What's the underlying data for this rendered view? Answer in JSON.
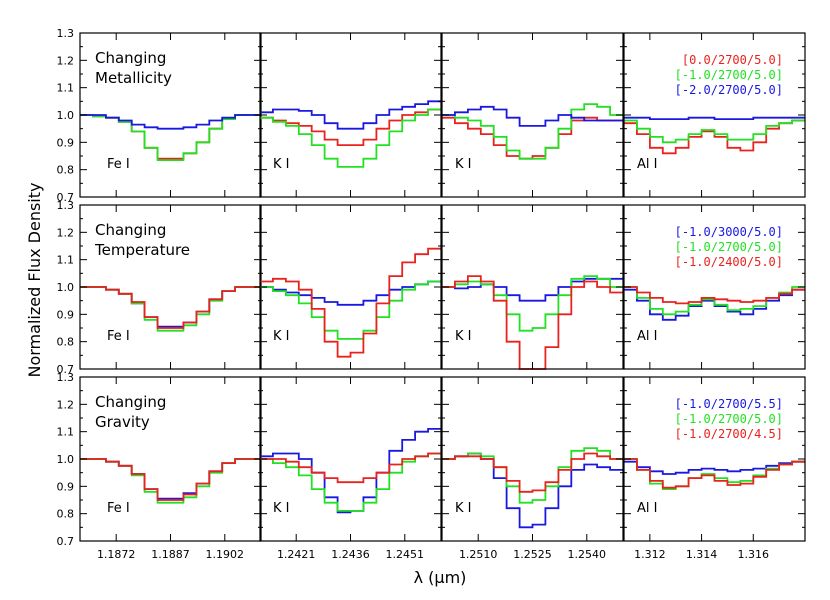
{
  "chart_data": {
    "type": "line",
    "ylabel": "Normalized Flux Density",
    "xlabel": "λ (μm)",
    "ylim": [
      0.7,
      1.3
    ],
    "yticks": [
      "0.7",
      "0.8",
      "0.9",
      "1.0",
      "1.1",
      "1.2",
      "1.3"
    ],
    "grid": false,
    "step": true,
    "columns": [
      {
        "line": "Fe I",
        "xlim": [
          1.1862,
          1.1912
        ],
        "ticks": [
          "1.1872",
          "1.1887",
          "1.1902"
        ],
        "tick_values": [
          1.1872,
          1.1887,
          1.1902
        ]
      },
      {
        "line": "K I",
        "xlim": [
          1.2411,
          1.2461
        ],
        "ticks": [
          "1.2421",
          "1.2436",
          "1.2451"
        ],
        "tick_values": [
          1.2421,
          1.2436,
          1.2451
        ]
      },
      {
        "line": "K I",
        "xlim": [
          1.25,
          1.255
        ],
        "ticks": [
          "1.2510",
          "1.2525",
          "1.2540"
        ],
        "tick_values": [
          1.251,
          1.2525,
          1.254
        ]
      },
      {
        "line": "Al I",
        "xlim": [
          1.311,
          1.318
        ],
        "ticks": [
          "1.312",
          "1.314",
          "1.316"
        ],
        "tick_values": [
          1.312,
          1.314,
          1.316
        ]
      }
    ],
    "rows": [
      {
        "title": [
          "Changing",
          "Metallicity"
        ],
        "legend": [
          {
            "label": "[0.0/2700/5.0]",
            "color": "#e8221e"
          },
          {
            "label": "[-1.0/2700/5.0]",
            "color": "#22e022"
          },
          {
            "label": "[-2.0/2700/5.0]",
            "color": "#1818e0"
          }
        ],
        "series": [
          [
            [
              1.0,
              0.995,
              0.99,
              0.975,
              0.94,
              0.88,
              0.84,
              0.84,
              0.86,
              0.9,
              0.95,
              0.985,
              1.0,
              1.0
            ],
            [
              1.0,
              0.995,
              0.99,
              0.975,
              0.94,
              0.88,
              0.835,
              0.835,
              0.86,
              0.9,
              0.95,
              0.985,
              1.0,
              1.0
            ],
            [
              1.0,
              1.0,
              0.99,
              0.98,
              0.965,
              0.955,
              0.95,
              0.95,
              0.955,
              0.965,
              0.98,
              0.99,
              1.0,
              1.0
            ]
          ],
          [
            [
              0.99,
              0.98,
              0.97,
              0.96,
              0.94,
              0.91,
              0.89,
              0.89,
              0.91,
              0.95,
              0.98,
              1.0,
              1.01,
              1.02
            ],
            [
              0.99,
              0.975,
              0.96,
              0.93,
              0.89,
              0.84,
              0.81,
              0.81,
              0.84,
              0.89,
              0.94,
              0.98,
              1.0,
              1.02
            ],
            [
              1.01,
              1.02,
              1.02,
              1.015,
              1.0,
              0.97,
              0.95,
              0.95,
              0.97,
              1.0,
              1.02,
              1.03,
              1.04,
              1.05
            ]
          ],
          [
            [
              0.99,
              0.97,
              0.95,
              0.93,
              0.89,
              0.85,
              0.84,
              0.85,
              0.88,
              0.93,
              0.98,
              0.99,
              0.98,
              0.98
            ],
            [
              1.0,
              0.99,
              0.98,
              0.96,
              0.92,
              0.87,
              0.84,
              0.84,
              0.88,
              0.95,
              1.02,
              1.04,
              1.03,
              1.0
            ],
            [
              1.0,
              1.01,
              1.02,
              1.03,
              1.02,
              0.99,
              0.96,
              0.96,
              0.98,
              1.0,
              0.99,
              0.98,
              0.98,
              0.98
            ]
          ],
          [
            [
              0.97,
              0.93,
              0.88,
              0.86,
              0.88,
              0.92,
              0.94,
              0.92,
              0.88,
              0.87,
              0.9,
              0.95,
              0.97,
              0.98
            ],
            [
              0.98,
              0.95,
              0.92,
              0.9,
              0.91,
              0.93,
              0.945,
              0.93,
              0.91,
              0.91,
              0.93,
              0.96,
              0.97,
              0.98
            ],
            [
              0.99,
              0.99,
              0.985,
              0.985,
              0.985,
              0.99,
              0.99,
              0.985,
              0.985,
              0.985,
              0.99,
              0.99,
              0.99,
              0.99
            ]
          ]
        ]
      },
      {
        "title": [
          "Changing",
          "Temperature"
        ],
        "legend": [
          {
            "label": "[-1.0/3000/5.0]",
            "color": "#1818e0"
          },
          {
            "label": "[-1.0/2700/5.0]",
            "color": "#22e022"
          },
          {
            "label": "[-1.0/2400/5.0]",
            "color": "#e8221e"
          }
        ],
        "series": [
          [
            [
              1.0,
              1.0,
              0.99,
              0.975,
              0.94,
              0.89,
              0.855,
              0.855,
              0.87,
              0.91,
              0.955,
              0.985,
              1.0,
              1.0
            ],
            [
              1.0,
              1.0,
              0.99,
              0.975,
              0.94,
              0.88,
              0.84,
              0.84,
              0.86,
              0.9,
              0.95,
              0.985,
              1.0,
              1.0
            ],
            [
              1.0,
              1.0,
              0.99,
              0.975,
              0.945,
              0.89,
              0.85,
              0.85,
              0.87,
              0.91,
              0.955,
              0.985,
              1.0,
              1.0
            ]
          ],
          [
            [
              1.0,
              0.99,
              0.98,
              0.97,
              0.96,
              0.945,
              0.935,
              0.935,
              0.95,
              0.97,
              0.99,
              1.0,
              1.01,
              1.02
            ],
            [
              1.0,
              0.985,
              0.97,
              0.94,
              0.89,
              0.84,
              0.81,
              0.81,
              0.84,
              0.89,
              0.95,
              0.99,
              1.01,
              1.02
            ],
            [
              1.02,
              1.03,
              1.02,
              0.99,
              0.92,
              0.8,
              0.745,
              0.76,
              0.83,
              0.94,
              1.04,
              1.09,
              1.12,
              1.14
            ]
          ],
          [
            [
              1.0,
              0.995,
              1.0,
              1.01,
              1.0,
              0.97,
              0.95,
              0.95,
              0.97,
              1.0,
              1.02,
              1.03,
              1.03,
              1.03
            ],
            [
              1.0,
              1.01,
              1.02,
              1.01,
              0.97,
              0.9,
              0.84,
              0.85,
              0.9,
              0.97,
              1.03,
              1.04,
              1.03,
              1.0
            ],
            [
              1.0,
              1.02,
              1.04,
              1.02,
              0.95,
              0.8,
              0.7,
              0.7,
              0.78,
              0.9,
              1.0,
              1.02,
              1.0,
              0.98
            ]
          ],
          [
            [
              0.99,
              0.95,
              0.9,
              0.88,
              0.895,
              0.93,
              0.95,
              0.93,
              0.91,
              0.9,
              0.92,
              0.95,
              0.97,
              0.99
            ],
            [
              1.0,
              0.96,
              0.92,
              0.9,
              0.91,
              0.935,
              0.955,
              0.935,
              0.915,
              0.92,
              0.93,
              0.96,
              0.98,
              1.0
            ],
            [
              1.0,
              0.98,
              0.96,
              0.945,
              0.94,
              0.945,
              0.96,
              0.955,
              0.95,
              0.945,
              0.95,
              0.96,
              0.975,
              0.99
            ]
          ]
        ]
      },
      {
        "title": [
          "Changing",
          "Gravity"
        ],
        "legend": [
          {
            "label": "[-1.0/2700/5.5]",
            "color": "#1818e0"
          },
          {
            "label": "[-1.0/2700/5.0]",
            "color": "#22e022"
          },
          {
            "label": "[-1.0/2700/4.5]",
            "color": "#e8221e"
          }
        ],
        "series": [
          [
            [
              1.0,
              1.0,
              0.99,
              0.975,
              0.945,
              0.89,
              0.855,
              0.855,
              0.875,
              0.91,
              0.955,
              0.985,
              1.0,
              1.0
            ],
            [
              1.0,
              1.0,
              0.99,
              0.975,
              0.94,
              0.88,
              0.84,
              0.84,
              0.86,
              0.9,
              0.95,
              0.985,
              1.0,
              1.0
            ],
            [
              1.0,
              1.0,
              0.99,
              0.975,
              0.945,
              0.89,
              0.85,
              0.85,
              0.87,
              0.91,
              0.955,
              0.985,
              1.0,
              1.0
            ]
          ],
          [
            [
              1.01,
              1.02,
              1.02,
              1.0,
              0.95,
              0.86,
              0.805,
              0.81,
              0.86,
              0.95,
              1.03,
              1.07,
              1.1,
              1.11
            ],
            [
              1.0,
              0.985,
              0.97,
              0.94,
              0.89,
              0.84,
              0.81,
              0.81,
              0.84,
              0.89,
              0.95,
              0.99,
              1.01,
              1.02
            ],
            [
              1.0,
              1.0,
              0.99,
              0.97,
              0.95,
              0.93,
              0.915,
              0.915,
              0.93,
              0.95,
              0.98,
              1.0,
              1.01,
              1.02
            ]
          ],
          [
            [
              1.0,
              1.01,
              1.02,
              1.0,
              0.93,
              0.82,
              0.75,
              0.76,
              0.82,
              0.9,
              0.96,
              0.98,
              0.97,
              0.96
            ],
            [
              1.0,
              1.01,
              1.02,
              1.01,
              0.97,
              0.9,
              0.84,
              0.85,
              0.9,
              0.97,
              1.03,
              1.04,
              1.03,
              1.0
            ],
            [
              1.0,
              1.01,
              1.01,
              1.0,
              0.97,
              0.92,
              0.88,
              0.885,
              0.915,
              0.96,
              1.0,
              1.02,
              1.01,
              1.0
            ]
          ],
          [
            [
              0.99,
              0.97,
              0.955,
              0.945,
              0.95,
              0.96,
              0.965,
              0.96,
              0.955,
              0.96,
              0.965,
              0.975,
              0.985,
              0.99
            ],
            [
              1.0,
              0.96,
              0.91,
              0.89,
              0.9,
              0.93,
              0.945,
              0.93,
              0.915,
              0.92,
              0.94,
              0.965,
              0.98,
              0.99
            ],
            [
              1.0,
              0.96,
              0.92,
              0.895,
              0.9,
              0.93,
              0.94,
              0.92,
              0.905,
              0.91,
              0.935,
              0.96,
              0.98,
              0.99
            ]
          ]
        ]
      }
    ]
  }
}
